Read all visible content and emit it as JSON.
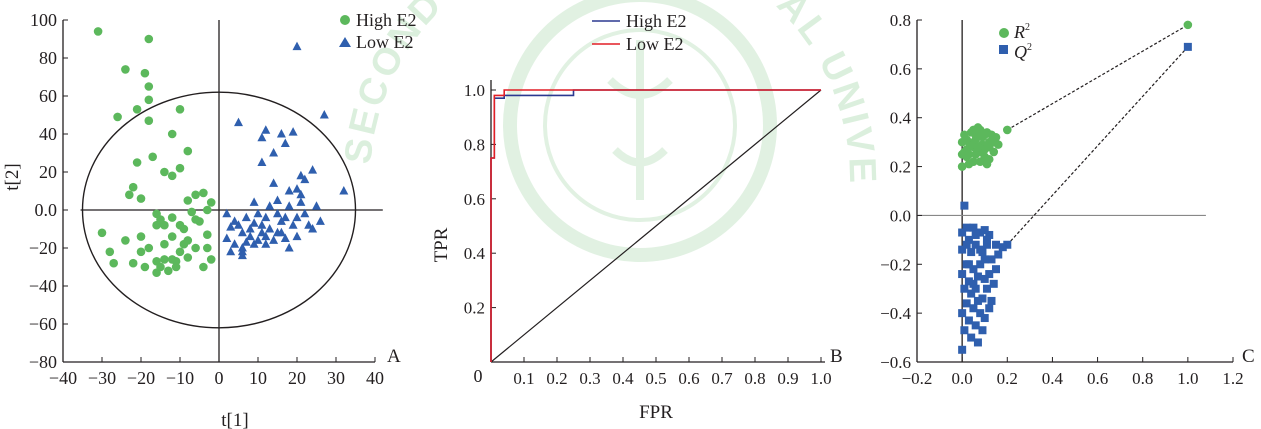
{
  "watermark": {
    "text": "SECOND MILITARY MEDICAL UNIVERSITY",
    "color": "#bfe3c2"
  },
  "colors": {
    "green": "#5cb85c",
    "blue": "#2f5fae",
    "roc_high": "#2b3990",
    "roc_low": "#e21f26",
    "axis": "#231f20"
  },
  "chart_data": [
    {
      "type": "scatter",
      "panel_letter": "A",
      "xlabel": "t[1]",
      "ylabel": "t[2]",
      "xlim": [
        -40,
        40
      ],
      "ylim": [
        -80,
        100
      ],
      "xticks": [
        -40,
        -30,
        -20,
        -10,
        0,
        10,
        20,
        30,
        40
      ],
      "yticks": [
        -80,
        -60,
        -40,
        -20,
        0,
        20,
        40,
        60,
        80,
        100
      ],
      "tick_labels_x": [
        "−40",
        "−30",
        "−20",
        "−10",
        "0",
        "10",
        "20",
        "30",
        "40"
      ],
      "tick_labels_y": [
        "−80",
        "−60",
        "−40",
        "−20",
        "0.0",
        "20",
        "40",
        "60",
        "80",
        "100"
      ],
      "ellipse": {
        "center": [
          0,
          0
        ],
        "rx": 35,
        "ry": 62
      },
      "legend_position": "top-right",
      "series": [
        {
          "name": "High E2",
          "marker": "circle",
          "points": [
            [
              -31,
              94
            ],
            [
              -24,
              74
            ],
            [
              -18,
              90
            ],
            [
              -19,
              72
            ],
            [
              -18,
              65
            ],
            [
              -18,
              58
            ],
            [
              -21,
              53
            ],
            [
              -26,
              49
            ],
            [
              -10,
              53
            ],
            [
              -12,
              40
            ],
            [
              -18,
              47
            ],
            [
              -8,
              31
            ],
            [
              -5,
              -6
            ],
            [
              -17,
              28
            ],
            [
              -21,
              25
            ],
            [
              -10,
              22
            ],
            [
              -14,
              20
            ],
            [
              -12,
              18
            ],
            [
              -22,
              12
            ],
            [
              -23,
              8
            ],
            [
              -20,
              6
            ],
            [
              -16,
              -2
            ],
            [
              -6,
              -5
            ],
            [
              -9,
              -10
            ],
            [
              -3,
              -13
            ],
            [
              -6,
              8
            ],
            [
              -4,
              9
            ],
            [
              -2,
              4
            ],
            [
              -3,
              0
            ],
            [
              -8,
              5
            ],
            [
              -12,
              -4
            ],
            [
              -14,
              -8
            ],
            [
              -10,
              -8
            ],
            [
              -16,
              -8
            ],
            [
              -12,
              -14
            ],
            [
              -8,
              -16
            ],
            [
              -14,
              -18
            ],
            [
              -18,
              -20
            ],
            [
              -20,
              -22
            ],
            [
              -10,
              -22
            ],
            [
              -12,
              -26
            ],
            [
              -14,
              -26
            ],
            [
              -16,
              -27
            ],
            [
              -22,
              -28
            ],
            [
              -27,
              -28
            ],
            [
              -11,
              -30
            ],
            [
              -4,
              -30
            ],
            [
              -2,
              -26
            ],
            [
              -6,
              -20
            ],
            [
              -9,
              -18
            ],
            [
              -16,
              -33
            ],
            [
              -19,
              -30
            ],
            [
              -24,
              -16
            ],
            [
              -28,
              -22
            ],
            [
              -30,
              -12
            ],
            [
              -15,
              -30
            ],
            [
              -13,
              -32
            ],
            [
              -15,
              -5
            ],
            [
              -7,
              -1
            ],
            [
              -3,
              -20
            ],
            [
              -20,
              -14
            ],
            [
              -11,
              -27
            ],
            [
              -8,
              -25
            ]
          ]
        },
        {
          "name": "Low E2",
          "marker": "triangle",
          "points": [
            [
              20,
              86
            ],
            [
              27,
              50
            ],
            [
              19,
              41
            ],
            [
              5,
              46
            ],
            [
              16,
              40
            ],
            [
              12,
              42
            ],
            [
              11,
              38
            ],
            [
              17,
              35
            ],
            [
              32,
              10
            ],
            [
              24,
              21
            ],
            [
              21,
              18
            ],
            [
              14,
              14
            ],
            [
              18,
              10
            ],
            [
              20,
              11
            ],
            [
              15,
              5
            ],
            [
              9,
              -7
            ],
            [
              12,
              -4
            ],
            [
              16,
              -6
            ],
            [
              13,
              -10
            ],
            [
              11,
              -12
            ],
            [
              8,
              -14
            ],
            [
              6,
              -12
            ],
            [
              4,
              -18
            ],
            [
              3,
              -22
            ],
            [
              6,
              -20
            ],
            [
              9,
              -18
            ],
            [
              12,
              -18
            ],
            [
              14,
              -16
            ],
            [
              20,
              -4
            ],
            [
              22,
              -2
            ],
            [
              25,
              2
            ],
            [
              23,
              -8
            ],
            [
              19,
              -8
            ],
            [
              16,
              -12
            ],
            [
              10,
              -16
            ],
            [
              5,
              -8
            ],
            [
              7,
              -4
            ],
            [
              2,
              -2
            ],
            [
              3,
              -9
            ],
            [
              4,
              -6
            ],
            [
              13,
              2
            ],
            [
              21,
              4
            ],
            [
              18,
              2
            ],
            [
              17,
              -4
            ],
            [
              11,
              -8
            ],
            [
              15,
              -12
            ],
            [
              8,
              -10
            ],
            [
              24,
              -10
            ],
            [
              20,
              -14
            ],
            [
              6,
              -22
            ],
            [
              12,
              -14
            ],
            [
              10,
              -2
            ],
            [
              9,
              4
            ],
            [
              11,
              25
            ],
            [
              22,
              16
            ],
            [
              14,
              30
            ],
            [
              6,
              -24
            ],
            [
              7,
              -17
            ],
            [
              17,
              -15
            ],
            [
              18,
              -20
            ],
            [
              2,
              -15
            ],
            [
              15,
              -2
            ],
            [
              21,
              8
            ],
            [
              26,
              -6
            ]
          ]
        }
      ]
    },
    {
      "type": "line",
      "panel_letter": "B",
      "xlabel": "FPR",
      "ylabel": "TPR",
      "xlim": [
        0,
        1
      ],
      "ylim": [
        0,
        1
      ],
      "xticks": [
        0.1,
        0.2,
        0.3,
        0.4,
        0.5,
        0.6,
        0.7,
        0.8,
        0.9,
        1.0
      ],
      "yticks": [
        0.2,
        0.4,
        0.6,
        0.8,
        1.0
      ],
      "tick_labels_x": [
        "0.1",
        "0.2",
        "0.3",
        "0.4",
        "0.5",
        "0.6",
        "0.7",
        "0.8",
        "0.9",
        "1.0"
      ],
      "tick_labels_y": [
        "0.2",
        "0.4",
        "0.6",
        "0.8",
        "1.0"
      ],
      "origin_label": "0",
      "legend_position": "top-center",
      "diagonal": [
        [
          0,
          0
        ],
        [
          1,
          1
        ]
      ],
      "series": [
        {
          "name": "High E2",
          "points": [
            [
              0,
              0
            ],
            [
              0,
              0.75
            ],
            [
              0.01,
              0.75
            ],
            [
              0.01,
              0.97
            ],
            [
              0.04,
              0.97
            ],
            [
              0.04,
              0.98
            ],
            [
              0.25,
              0.98
            ],
            [
              0.25,
              1.0
            ],
            [
              1.0,
              1.0
            ]
          ]
        },
        {
          "name": "Low E2",
          "points": [
            [
              0,
              0
            ],
            [
              0,
              0.75
            ],
            [
              0.01,
              0.75
            ],
            [
              0.01,
              0.98
            ],
            [
              0.04,
              0.98
            ],
            [
              0.04,
              1.0
            ],
            [
              1.0,
              1.0
            ]
          ]
        }
      ]
    },
    {
      "type": "scatter",
      "panel_letter": "C",
      "xlim": [
        -0.2,
        1.2
      ],
      "ylim": [
        -0.6,
        0.8
      ],
      "xticks": [
        -0.2,
        0.0,
        0.2,
        0.4,
        0.6,
        0.8,
        1.0,
        1.2
      ],
      "yticks": [
        -0.6,
        -0.4,
        -0.2,
        0.0,
        0.2,
        0.4,
        0.6,
        0.8
      ],
      "tick_labels_x": [
        "−0.2",
        "0.0",
        "0.2",
        "0.4",
        "0.6",
        "0.8",
        "1.0",
        "1.2"
      ],
      "tick_labels_y": [
        "−0.6",
        "−0.4",
        "−0.2",
        "0.0",
        "0.2",
        "0.4",
        "0.6",
        "0.8"
      ],
      "legend_position": "top-left",
      "series": [
        {
          "name": "R²",
          "name_base": "R",
          "name_sup": "2",
          "marker": "circle",
          "endpoint": [
            1.0,
            0.78
          ],
          "regression_from": [
            0.2,
            0.35
          ],
          "points": [
            [
              0.2,
              0.35
            ],
            [
              0.15,
              0.32
            ],
            [
              0.12,
              0.3
            ],
            [
              0.1,
              0.33
            ],
            [
              0.08,
              0.35
            ],
            [
              0.06,
              0.31
            ],
            [
              0.05,
              0.28
            ],
            [
              0.04,
              0.34
            ],
            [
              0.03,
              0.3
            ],
            [
              0.02,
              0.27
            ],
            [
              0.01,
              0.33
            ],
            [
              0.0,
              0.3
            ],
            [
              0.02,
              0.24
            ],
            [
              0.05,
              0.22
            ],
            [
              0.08,
              0.26
            ],
            [
              0.1,
              0.24
            ],
            [
              0.12,
              0.28
            ],
            [
              0.14,
              0.26
            ],
            [
              0.0,
              0.2
            ],
            [
              0.03,
              0.21
            ],
            [
              0.06,
              0.25
            ],
            [
              0.09,
              0.29
            ],
            [
              0.11,
              0.34
            ],
            [
              0.07,
              0.36
            ],
            [
              0.13,
              0.33
            ],
            [
              0.16,
              0.29
            ],
            [
              0.01,
              0.26
            ],
            [
              0.04,
              0.29
            ],
            [
              0.06,
              0.33
            ],
            [
              0.08,
              0.22
            ],
            [
              0.1,
              0.27
            ],
            [
              0.02,
              0.31
            ],
            [
              0.05,
              0.35
            ],
            [
              0.0,
              0.25
            ],
            [
              0.12,
              0.23
            ],
            [
              0.09,
              0.32
            ],
            [
              0.07,
              0.28
            ],
            [
              0.03,
              0.25
            ],
            [
              0.14,
              0.3
            ],
            [
              0.11,
              0.21
            ]
          ]
        },
        {
          "name": "Q²",
          "name_base": "Q",
          "name_sup": "2",
          "marker": "square",
          "endpoint": [
            1.0,
            0.69
          ],
          "regression_from": [
            0.2,
            -0.12
          ],
          "points": [
            [
              0.2,
              -0.12
            ],
            [
              0.18,
              -0.13
            ],
            [
              0.15,
              -0.12
            ],
            [
              0.12,
              -0.08
            ],
            [
              0.1,
              -0.06
            ],
            [
              0.08,
              -0.07
            ],
            [
              0.05,
              -0.05
            ],
            [
              0.02,
              -0.05
            ],
            [
              0.0,
              -0.07
            ],
            [
              0.01,
              0.04
            ],
            [
              0.03,
              -0.1
            ],
            [
              0.06,
              -0.12
            ],
            [
              0.09,
              -0.15
            ],
            [
              0.11,
              -0.12
            ],
            [
              0.13,
              -0.18
            ],
            [
              0.04,
              -0.15
            ],
            [
              0.0,
              -0.14
            ],
            [
              0.02,
              -0.2
            ],
            [
              0.05,
              -0.22
            ],
            [
              0.08,
              -0.2
            ],
            [
              0.1,
              -0.18
            ],
            [
              0.12,
              -0.24
            ],
            [
              0.14,
              -0.28
            ],
            [
              0.07,
              -0.25
            ],
            [
              0.03,
              -0.27
            ],
            [
              0.0,
              -0.24
            ],
            [
              0.01,
              -0.3
            ],
            [
              0.04,
              -0.32
            ],
            [
              0.06,
              -0.3
            ],
            [
              0.09,
              -0.34
            ],
            [
              0.11,
              -0.3
            ],
            [
              0.13,
              -0.35
            ],
            [
              0.02,
              -0.36
            ],
            [
              0.05,
              -0.38
            ],
            [
              0.08,
              -0.4
            ],
            [
              0.1,
              -0.42
            ],
            [
              0.0,
              -0.4
            ],
            [
              0.03,
              -0.43
            ],
            [
              0.06,
              -0.45
            ],
            [
              0.09,
              -0.47
            ],
            [
              0.12,
              -0.38
            ],
            [
              0.01,
              -0.47
            ],
            [
              0.04,
              -0.5
            ],
            [
              0.07,
              -0.52
            ],
            [
              0.0,
              -0.55
            ],
            [
              0.15,
              -0.22
            ],
            [
              0.16,
              -0.16
            ],
            [
              0.06,
              -0.08
            ],
            [
              0.02,
              -0.12
            ],
            [
              0.1,
              -0.26
            ],
            [
              0.07,
              -0.35
            ],
            [
              0.03,
              -0.2
            ],
            [
              0.11,
              -0.1
            ],
            [
              0.05,
              -0.28
            ],
            [
              0.08,
              -0.14
            ]
          ]
        }
      ]
    }
  ]
}
